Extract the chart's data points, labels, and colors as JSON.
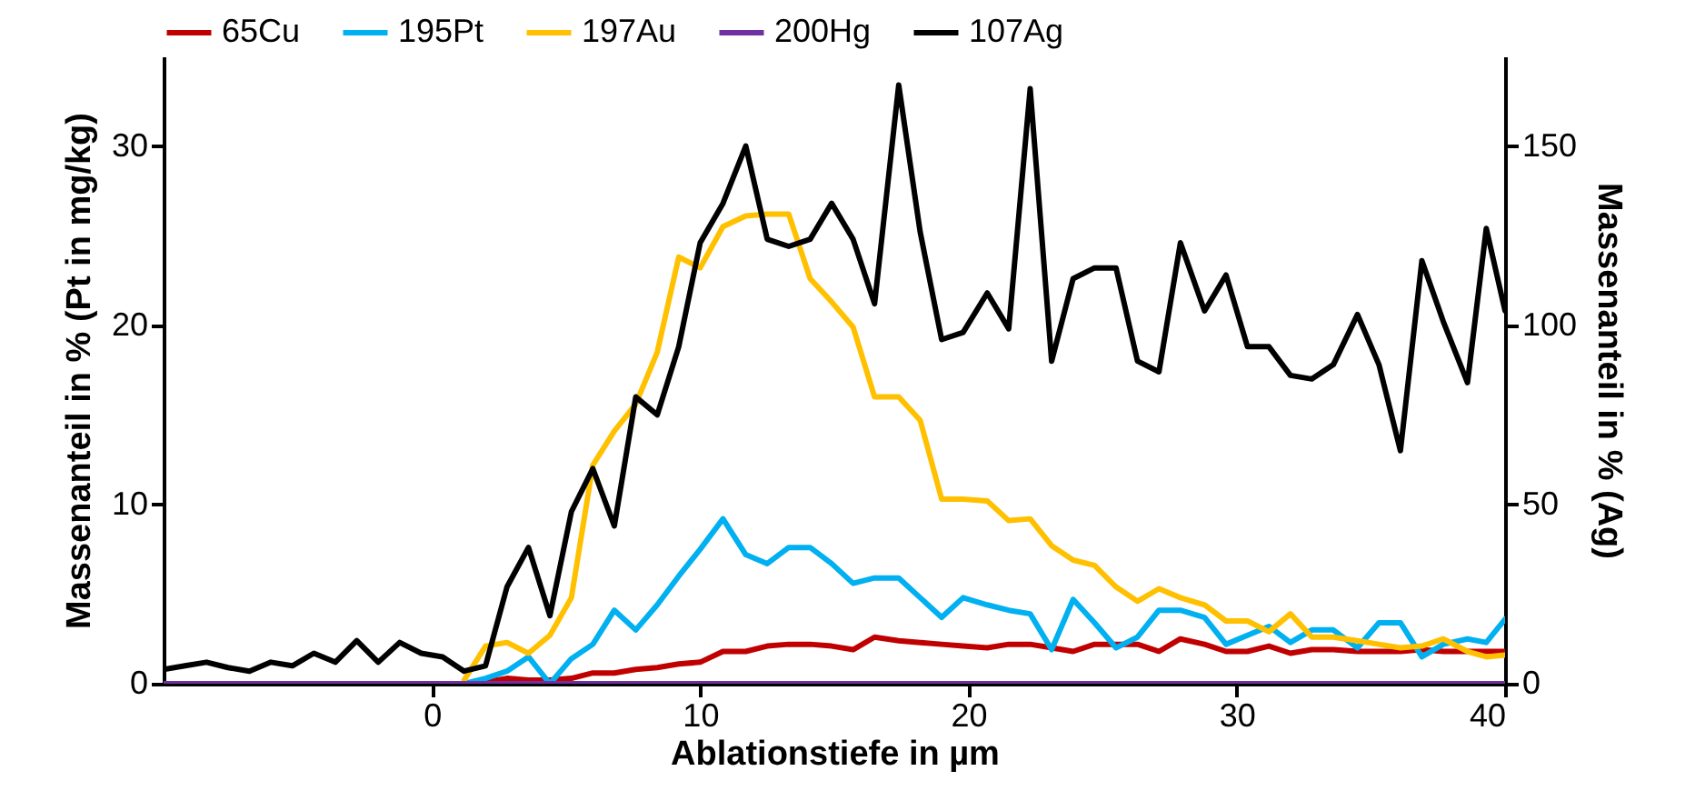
{
  "chart_data": {
    "type": "line",
    "xlabel": "Ablationstiefe in µm",
    "ylabel": "Massenanteil in % (Pt in mg/kg)",
    "y2label": "Massenanteil in % (Ag)",
    "x": [
      -10,
      -9.2,
      -8.4,
      -7.6,
      -6.8,
      -6.0,
      -5.2,
      -4.4,
      -3.6,
      -2.8,
      -2.0,
      -1.2,
      -0.4,
      0.4,
      1.2,
      2.0,
      2.8,
      3.6,
      4.4,
      5.2,
      6.0,
      6.8,
      7.6,
      8.4,
      9.2,
      10.0,
      10.85,
      11.7,
      12.5,
      13.3,
      14.1,
      14.9,
      15.7,
      16.5,
      17.4,
      18.2,
      19.0,
      19.8,
      20.7,
      21.5,
      22.3,
      23.1,
      23.9,
      24.7,
      25.5,
      26.3,
      27.1,
      27.9,
      28.8,
      29.6,
      30.4,
      31.2,
      32.0,
      32.8,
      33.6,
      34.5,
      35.3,
      36.1,
      36.9,
      37.7,
      38.6,
      39.3,
      40.0
    ],
    "series": [
      {
        "name": "65Cu",
        "color": "#c00000",
        "values": [
          null,
          null,
          null,
          null,
          null,
          null,
          null,
          null,
          null,
          null,
          null,
          null,
          null,
          null,
          0,
          0.1,
          0.3,
          0.2,
          0.2,
          0.3,
          0.6,
          0.6,
          0.8,
          0.9,
          1.1,
          1.2,
          1.8,
          1.8,
          2.1,
          2.2,
          2.2,
          2.1,
          1.9,
          2.6,
          2.4,
          2.3,
          2.2,
          2.1,
          2.0,
          2.2,
          2.2,
          2.0,
          1.8,
          2.2,
          2.2,
          2.2,
          1.8,
          2.5,
          2.2,
          1.8,
          1.8,
          2.1,
          1.7,
          1.9,
          1.9,
          1.8,
          1.8,
          1.8,
          1.9,
          1.8,
          1.8,
          1.8,
          1.8
        ]
      },
      {
        "name": "195Pt",
        "color": "#00b0f0",
        "values": [
          null,
          null,
          null,
          null,
          null,
          null,
          null,
          null,
          null,
          null,
          null,
          null,
          null,
          null,
          0,
          0.3,
          0.7,
          1.5,
          0,
          1.4,
          2.2,
          4.1,
          3.0,
          4.4,
          6.0,
          7.5,
          9.2,
          7.2,
          6.7,
          7.6,
          7.6,
          6.7,
          5.6,
          5.9,
          5.9,
          4.8,
          3.7,
          4.8,
          4.4,
          4.1,
          3.9,
          1.9,
          4.7,
          3.4,
          2.0,
          2.6,
          4.1,
          4.1,
          3.7,
          2.2,
          2.7,
          3.2,
          2.3,
          3.0,
          3.0,
          2.0,
          3.4,
          3.4,
          1.5,
          2.2,
          2.5,
          2.3,
          3.6
        ]
      },
      {
        "name": "197Au",
        "color": "#ffc000",
        "values": [
          null,
          null,
          null,
          null,
          null,
          null,
          null,
          null,
          null,
          null,
          null,
          null,
          null,
          null,
          0.2,
          2.1,
          2.3,
          1.7,
          2.7,
          4.8,
          12.2,
          14.1,
          15.6,
          18.5,
          23.8,
          23.2,
          25.5,
          26.1,
          26.2,
          26.2,
          22.6,
          21.3,
          19.9,
          16.0,
          16.0,
          14.7,
          10.3,
          10.3,
          10.2,
          9.1,
          9.2,
          7.7,
          6.9,
          6.6,
          5.4,
          4.6,
          5.3,
          4.8,
          4.4,
          3.5,
          3.5,
          2.9,
          3.9,
          2.6,
          2.6,
          2.4,
          2.2,
          2.0,
          2.1,
          2.5,
          1.8,
          1.5,
          1.6
        ]
      },
      {
        "name": "200Hg",
        "color": "#7030a0",
        "values": [
          0,
          0,
          0,
          0,
          0,
          0,
          0,
          0,
          0,
          0,
          0,
          0,
          0,
          0,
          0,
          0,
          0,
          0,
          0,
          0,
          0,
          0,
          0,
          0,
          0,
          0,
          0,
          0,
          0,
          0,
          0,
          0,
          0,
          0,
          0,
          0,
          0,
          0,
          0,
          0,
          0,
          0,
          0,
          0,
          0,
          0,
          0,
          0,
          0,
          0,
          0,
          0,
          0,
          0,
          0,
          0,
          0,
          0,
          0,
          0,
          0,
          0,
          0
        ]
      },
      {
        "name": "107Ag",
        "color": "#000000",
        "axis": "y2",
        "values": [
          4,
          5,
          6,
          4.5,
          3.5,
          6,
          5,
          8.5,
          6,
          12,
          6,
          11.5,
          8.5,
          7.5,
          3.5,
          5,
          27,
          38,
          19,
          48,
          60,
          44,
          80,
          75,
          94,
          123,
          134,
          150,
          124,
          122,
          124,
          134,
          124,
          106,
          167,
          126,
          96,
          98,
          109,
          99,
          166,
          90,
          113,
          116,
          116,
          90,
          87,
          123,
          104,
          114,
          94,
          94,
          86,
          85,
          89,
          103,
          89,
          65,
          118,
          101,
          84,
          127,
          104
        ]
      }
    ],
    "xlim": [
      -10,
      40
    ],
    "xticks": [
      0,
      10,
      20,
      30,
      40
    ],
    "ylim": [
      0,
      35
    ],
    "yticks": [
      0,
      10,
      20,
      30
    ],
    "y2lim": [
      0,
      175
    ],
    "y2ticks": [
      0,
      50,
      100,
      150
    ],
    "legend": "top"
  }
}
